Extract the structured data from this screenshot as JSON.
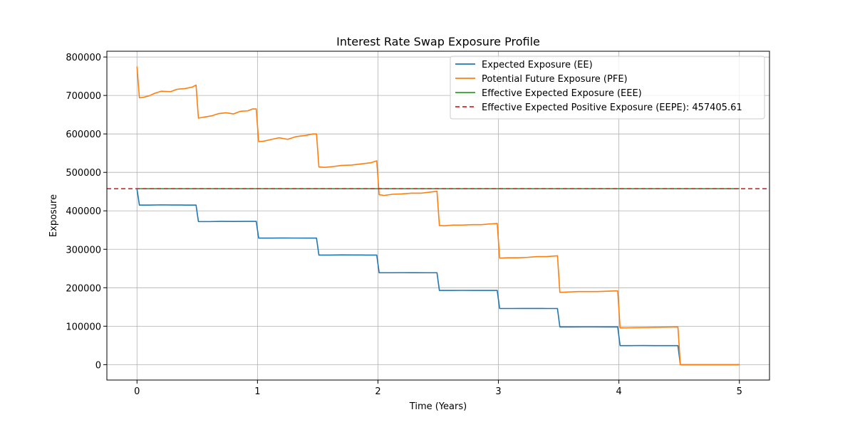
{
  "chart_data": {
    "type": "line",
    "title": "Interest Rate Swap Exposure Profile",
    "xlabel": "Time (Years)",
    "ylabel": "Exposure",
    "xlim": [
      -0.25,
      5.25
    ],
    "ylim": [
      -40000,
      815000
    ],
    "xticks": [
      0,
      1,
      2,
      3,
      4,
      5
    ],
    "yticks": [
      0,
      100000,
      200000,
      300000,
      400000,
      500000,
      600000,
      700000,
      800000
    ],
    "grid": true,
    "legend_position": "top-right",
    "series": [
      {
        "name": "Expected Exposure (EE)",
        "color": "#1f77b4",
        "style": "solid",
        "points": [
          [
            0,
            457000
          ],
          [
            0.02,
            415000
          ],
          [
            0.1,
            415000
          ],
          [
            0.2,
            415500
          ],
          [
            0.3,
            415200
          ],
          [
            0.4,
            415000
          ],
          [
            0.49,
            415000
          ],
          [
            0.51,
            372000
          ],
          [
            0.6,
            372000
          ],
          [
            0.7,
            372500
          ],
          [
            0.8,
            372300
          ],
          [
            0.9,
            372500
          ],
          [
            0.99,
            372500
          ],
          [
            1.01,
            329000
          ],
          [
            1.1,
            329000
          ],
          [
            1.2,
            329300
          ],
          [
            1.3,
            329200
          ],
          [
            1.4,
            329000
          ],
          [
            1.49,
            329000
          ],
          [
            1.51,
            285000
          ],
          [
            1.6,
            285000
          ],
          [
            1.7,
            285300
          ],
          [
            1.8,
            285200
          ],
          [
            1.9,
            285000
          ],
          [
            1.99,
            285000
          ],
          [
            2.01,
            239000
          ],
          [
            2.1,
            239000
          ],
          [
            2.2,
            239200
          ],
          [
            2.3,
            239100
          ],
          [
            2.4,
            239000
          ],
          [
            2.49,
            239000
          ],
          [
            2.51,
            193000
          ],
          [
            2.6,
            193000
          ],
          [
            2.7,
            193200
          ],
          [
            2.8,
            193100
          ],
          [
            2.9,
            193000
          ],
          [
            2.99,
            193000
          ],
          [
            3.01,
            146000
          ],
          [
            3.1,
            146000
          ],
          [
            3.2,
            146200
          ],
          [
            3.3,
            146100
          ],
          [
            3.4,
            146000
          ],
          [
            3.49,
            146000
          ],
          [
            3.51,
            98000
          ],
          [
            3.6,
            98000
          ],
          [
            3.7,
            98100
          ],
          [
            3.8,
            98100
          ],
          [
            3.9,
            98000
          ],
          [
            3.99,
            98000
          ],
          [
            4.01,
            49500
          ],
          [
            4.1,
            49500
          ],
          [
            4.2,
            49600
          ],
          [
            4.3,
            49500
          ],
          [
            4.4,
            49500
          ],
          [
            4.49,
            49500
          ],
          [
            4.51,
            0
          ],
          [
            5.0,
            0
          ]
        ]
      },
      {
        "name": "Potential Future Exposure (PFE)",
        "color": "#ff7f0e",
        "style": "solid",
        "points": [
          [
            0,
            775000
          ],
          [
            0.02,
            694000
          ],
          [
            0.05,
            695000
          ],
          [
            0.1,
            699000
          ],
          [
            0.15,
            706000
          ],
          [
            0.2,
            711000
          ],
          [
            0.28,
            710000
          ],
          [
            0.33,
            716000
          ],
          [
            0.4,
            718000
          ],
          [
            0.46,
            722000
          ],
          [
            0.49,
            727000
          ],
          [
            0.51,
            641000
          ],
          [
            0.56,
            644000
          ],
          [
            0.62,
            647000
          ],
          [
            0.68,
            653000
          ],
          [
            0.74,
            655000
          ],
          [
            0.8,
            652000
          ],
          [
            0.86,
            659000
          ],
          [
            0.92,
            660000
          ],
          [
            0.96,
            665000
          ],
          [
            0.99,
            665000
          ],
          [
            1.01,
            580000
          ],
          [
            1.05,
            581000
          ],
          [
            1.12,
            586000
          ],
          [
            1.18,
            590000
          ],
          [
            1.25,
            586000
          ],
          [
            1.32,
            593000
          ],
          [
            1.4,
            596000
          ],
          [
            1.46,
            600000
          ],
          [
            1.49,
            600000
          ],
          [
            1.51,
            514000
          ],
          [
            1.56,
            513000
          ],
          [
            1.62,
            515000
          ],
          [
            1.7,
            518000
          ],
          [
            1.78,
            519000
          ],
          [
            1.86,
            522000
          ],
          [
            1.94,
            525000
          ],
          [
            1.99,
            530000
          ],
          [
            2.01,
            442000
          ],
          [
            2.05,
            440000
          ],
          [
            2.12,
            443000
          ],
          [
            2.2,
            444000
          ],
          [
            2.28,
            446000
          ],
          [
            2.36,
            446000
          ],
          [
            2.44,
            449000
          ],
          [
            2.49,
            451000
          ],
          [
            2.51,
            362000
          ],
          [
            2.55,
            361000
          ],
          [
            2.62,
            363000
          ],
          [
            2.7,
            363000
          ],
          [
            2.78,
            364000
          ],
          [
            2.86,
            364000
          ],
          [
            2.93,
            366000
          ],
          [
            2.99,
            367000
          ],
          [
            3.01,
            277000
          ],
          [
            3.08,
            278000
          ],
          [
            3.16,
            278000
          ],
          [
            3.24,
            279000
          ],
          [
            3.32,
            281000
          ],
          [
            3.4,
            281000
          ],
          [
            3.49,
            283000
          ],
          [
            3.51,
            188000
          ],
          [
            3.58,
            189000
          ],
          [
            3.66,
            190000
          ],
          [
            3.74,
            190000
          ],
          [
            3.82,
            190000
          ],
          [
            3.9,
            191000
          ],
          [
            3.99,
            192000
          ],
          [
            4.01,
            95500
          ],
          [
            4.1,
            96000
          ],
          [
            4.2,
            96500
          ],
          [
            4.3,
            97000
          ],
          [
            4.4,
            97500
          ],
          [
            4.49,
            98000
          ],
          [
            4.51,
            0
          ],
          [
            5.0,
            0
          ]
        ]
      },
      {
        "name": "Effective Expected Exposure (EEE)",
        "color": "#2ca02c",
        "style": "solid",
        "points": [
          [
            0,
            457405.61
          ],
          [
            5.0,
            457405.61
          ]
        ]
      },
      {
        "name": "Effective Expected Positive Exposure (EEPE): 457405.61",
        "color": "#d62728",
        "style": "dashed",
        "points": [
          [
            -0.25,
            457405.61
          ],
          [
            5.25,
            457405.61
          ]
        ]
      }
    ]
  }
}
